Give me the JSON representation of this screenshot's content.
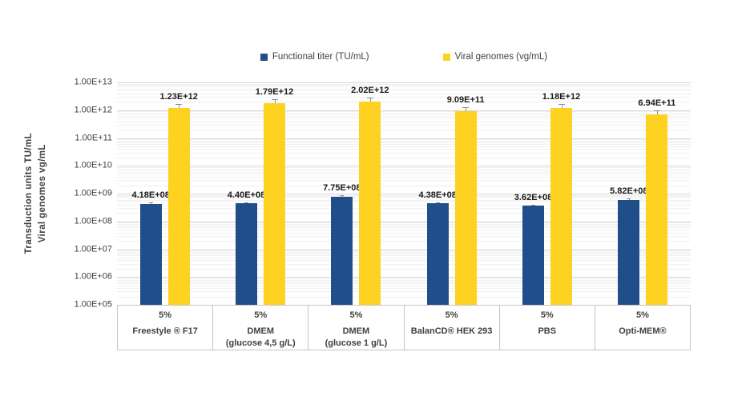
{
  "chart_data": {
    "type": "bar",
    "title": "",
    "y_scale": "log10",
    "ylim": [
      100000.0,
      10000000000000.0
    ],
    "y_tick_labels": [
      "1.00E+13",
      "1.00E+12",
      "1.00E+11",
      "1.00E+10",
      "1.00E+09",
      "1.00E+08",
      "1.00E+07",
      "1.00E+06",
      "1.00E+05"
    ],
    "y_axis_title_line1": "Transduction units TU/mL",
    "y_axis_title_line2": "Viral genomes vg/mL",
    "legend_position": "top",
    "grid": "log major + minor gridlines",
    "categories": [
      {
        "condition": "5%",
        "name_lines": [
          "Freestyle ® F17"
        ]
      },
      {
        "condition": "5%",
        "name_lines": [
          "DMEM",
          "(glucose 4,5 g/L)"
        ]
      },
      {
        "condition": "5%",
        "name_lines": [
          "DMEM",
          "(glucose 1 g/L)"
        ]
      },
      {
        "condition": "5%",
        "name_lines": [
          "BalanCD® HEK 293"
        ]
      },
      {
        "condition": "5%",
        "name_lines": [
          "PBS"
        ]
      },
      {
        "condition": "5%",
        "name_lines": [
          "Opti-MEM®"
        ]
      }
    ],
    "series": [
      {
        "name": "Functional titer (TU/mL)",
        "color": "#1F4E8B",
        "values": [
          418000000.0,
          440000000.0,
          775000000.0,
          438000000.0,
          362000000.0,
          582000000.0
        ],
        "labels": [
          "4.18E+08",
          "4.40E+08",
          "7.75E+08",
          "4.38E+08",
          "3.62E+08",
          "5.82E+08"
        ],
        "error_up_pct": 12
      },
      {
        "name": "Viral genomes (vg/mL)",
        "color": "#FDD220",
        "values": [
          1230000000000.0,
          1790000000000.0,
          2020000000000.0,
          909000000000.0,
          1180000000000.0,
          694000000000.0
        ],
        "labels": [
          "1.23E+12",
          "1.79E+12",
          "2.02E+12",
          "9.09E+11",
          "1.18E+12",
          "6.94E+11"
        ],
        "error_up_pct": 38
      }
    ],
    "colors": {
      "grid_major": "#D6D6D6",
      "grid_minor": "#F0F0F0",
      "axis_border": "#C4C4C4",
      "error_bar": "#8C8C8C",
      "tick_text": "#404040",
      "label_text": "#1A1A1A"
    }
  }
}
